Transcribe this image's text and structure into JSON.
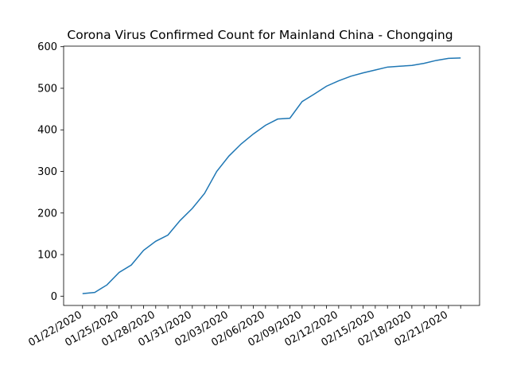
{
  "chart_data": {
    "type": "line",
    "title": "Corona Virus Confirmed Count for Mainland China - Chongqing",
    "categories": [
      "01/22/2020",
      null,
      null,
      "01/25/2020",
      null,
      null,
      "01/28/2020",
      null,
      null,
      "01/31/2020",
      null,
      null,
      "02/03/2020",
      null,
      null,
      "02/06/2020",
      null,
      null,
      "02/09/2020",
      null,
      null,
      "02/12/2020",
      null,
      null,
      "02/15/2020",
      null,
      null,
      "02/18/2020",
      null,
      null,
      "02/21/2020",
      null
    ],
    "series": [
      {
        "color": "#1f77b4",
        "values": [
          6,
          9,
          27,
          57,
          75,
          110,
          132,
          147,
          182,
          211,
          247,
          300,
          337,
          366,
          390,
          411,
          426,
          428,
          468,
          486,
          505,
          518,
          529,
          537,
          544,
          551,
          553,
          555,
          560,
          567,
          572,
          573
        ]
      }
    ],
    "ylim": [
      -22.35,
      601.35
    ],
    "yticks": [
      0,
      100,
      200,
      300,
      400,
      500,
      600
    ]
  }
}
